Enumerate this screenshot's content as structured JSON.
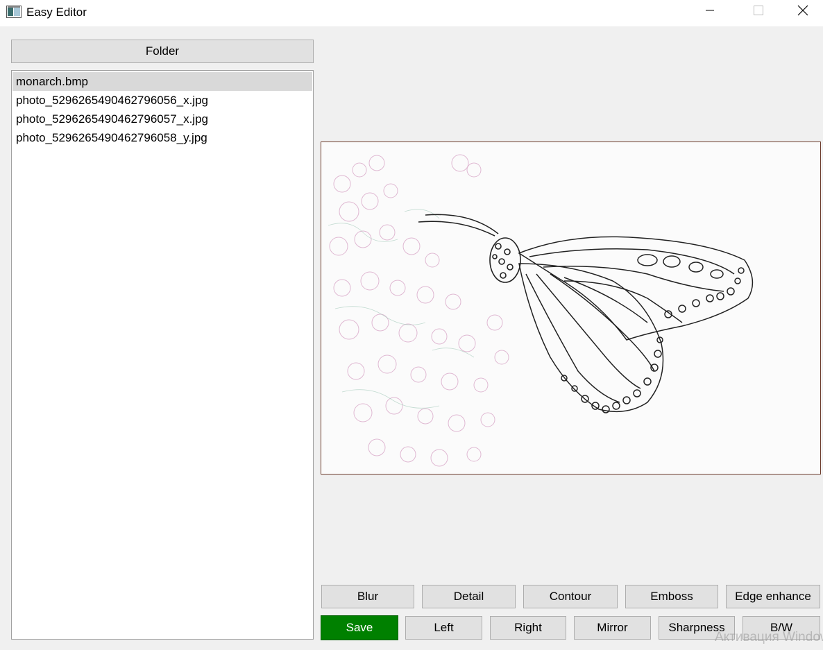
{
  "window": {
    "title": "Easy Editor"
  },
  "sidebar": {
    "folder_label": "Folder",
    "files": [
      "monarch.bmp",
      "photo_5296265490462796056_x.jpg",
      "photo_5296265490462796057_x.jpg",
      "photo_5296265490462796058_y.jpg"
    ],
    "selected_index": 0
  },
  "toolbar": {
    "row1": [
      "Blur",
      "Detail",
      "Contour",
      "Emboss",
      "Edge enhance"
    ],
    "row2": [
      "Save",
      "Left",
      "Right",
      "Mirror",
      "Sharpness",
      "B/W"
    ]
  },
  "watermark": "Активация Windows",
  "colors": {
    "save_bg": "#008000",
    "selected_item": "#d9d9d9",
    "button_bg": "#e1e1e1"
  },
  "icons": {
    "app": "app-window-icon",
    "minimize": "minimize-icon",
    "maximize": "maximize-icon",
    "close": "close-icon"
  }
}
